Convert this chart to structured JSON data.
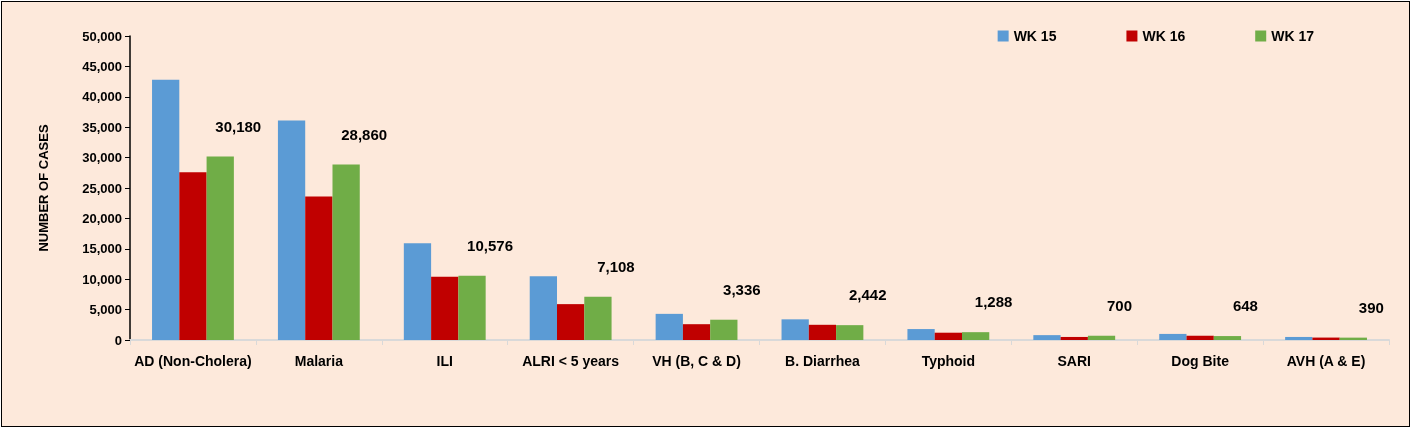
{
  "chart_data": {
    "type": "bar",
    "ylabel": "NUMBER OF CASES",
    "categories": [
      "AD (Non-Cholera)",
      "Malaria",
      "ILI",
      "ALRI < 5 years",
      "VH (B, C & D)",
      "B. Diarrhea",
      "Typhoid",
      "SARI",
      "Dog Bite",
      "AVH (A & E)"
    ],
    "series": [
      {
        "name": "WK 15",
        "color": "#5b9bd5",
        "values": [
          42800,
          36100,
          15900,
          10500,
          4300,
          3400,
          1800,
          800,
          1000,
          500
        ]
      },
      {
        "name": "WK 16",
        "color": "#c00000",
        "values": [
          27600,
          23600,
          10400,
          5900,
          2600,
          2500,
          1200,
          500,
          700,
          400
        ]
      },
      {
        "name": "WK 17",
        "color": "#70ad47",
        "values": [
          30180,
          28860,
          10576,
          7108,
          3336,
          2442,
          1288,
          700,
          648,
          390
        ],
        "value_labels": [
          "30,180",
          "28,860",
          "10,576",
          "7,108",
          "3,336",
          "2,442",
          "1,288",
          "700",
          "648",
          "390"
        ]
      }
    ],
    "ylim": [
      0,
      50000
    ],
    "yticks": [
      0,
      {
        "value": 5000,
        "label": "5,000"
      },
      {
        "value": 10000,
        "label": "10,000"
      },
      {
        "value": 15000,
        "label": "15,000"
      },
      {
        "value": 20000,
        "label": "20,000"
      },
      {
        "value": 25000,
        "label": "25,000"
      },
      {
        "value": 30000,
        "label": "30,000"
      },
      {
        "value": 35000,
        "label": "35,000"
      },
      {
        "value": 40000,
        "label": "40,000"
      },
      {
        "value": 45000,
        "label": "45,000"
      },
      {
        "value": 50000,
        "label": "50,000"
      }
    ],
    "grid": false,
    "legend": "top right"
  }
}
